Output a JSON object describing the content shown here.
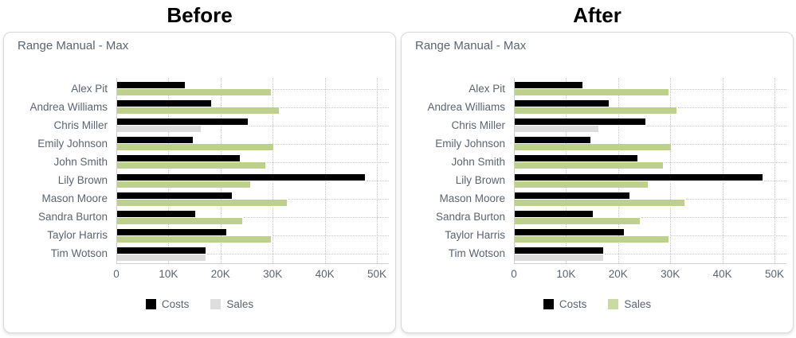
{
  "panels": [
    {
      "id": "before",
      "header": "Before",
      "legend": [
        {
          "label": "Costs",
          "swatch_color": "#000000"
        },
        {
          "label": "Sales",
          "swatch_color": "#dedede"
        }
      ]
    },
    {
      "id": "after",
      "header": "After",
      "legend": [
        {
          "label": "Costs",
          "swatch_color": "#000000"
        },
        {
          "label": "Sales",
          "swatch_color": "#cbdb9f"
        }
      ]
    }
  ],
  "chart_data": {
    "type": "bar",
    "orientation": "horizontal",
    "title": "Range Manual - Max",
    "categories": [
      "Alex Pit",
      "Andrea Williams",
      "Chris Miller",
      "Emily Johnson",
      "John Smith",
      "Lily Brown",
      "Mason Moore",
      "Sandra Burton",
      "Taylor Harris",
      "Tim Wotson"
    ],
    "series": [
      {
        "name": "Costs",
        "color": "#000000",
        "values": [
          13000,
          18000,
          25000,
          14500,
          23500,
          47500,
          22000,
          15000,
          21000,
          17000
        ]
      },
      {
        "name": "Sales",
        "color": "#bdd08c",
        "values": [
          29500,
          31000,
          16000,
          30000,
          28500,
          25500,
          32500,
          24000,
          29500,
          17000
        ],
        "point_color_overrides": {
          "2": "#dcdcdc",
          "9": "#dcdcdc"
        }
      }
    ],
    "x_ticks": [
      {
        "value": 0,
        "label": "0"
      },
      {
        "value": 10000,
        "label": "10K"
      },
      {
        "value": 20000,
        "label": "20K"
      },
      {
        "value": 30000,
        "label": "30K"
      },
      {
        "value": 40000,
        "label": "40K"
      },
      {
        "value": 50000,
        "label": "50K"
      }
    ],
    "xlim": [
      0,
      50000
    ],
    "grid": "dotted",
    "legend_position": "bottom"
  },
  "colors": {
    "label_text": "#5b6572",
    "grid_dotted": "#c8c8c8",
    "axis_line": "#d0d0d0",
    "panel_border": "#d9d9d9",
    "costs_bar": "#000000",
    "sales_bar_green": "#bdd08c",
    "sales_bar_gray": "#dcdcdc"
  }
}
